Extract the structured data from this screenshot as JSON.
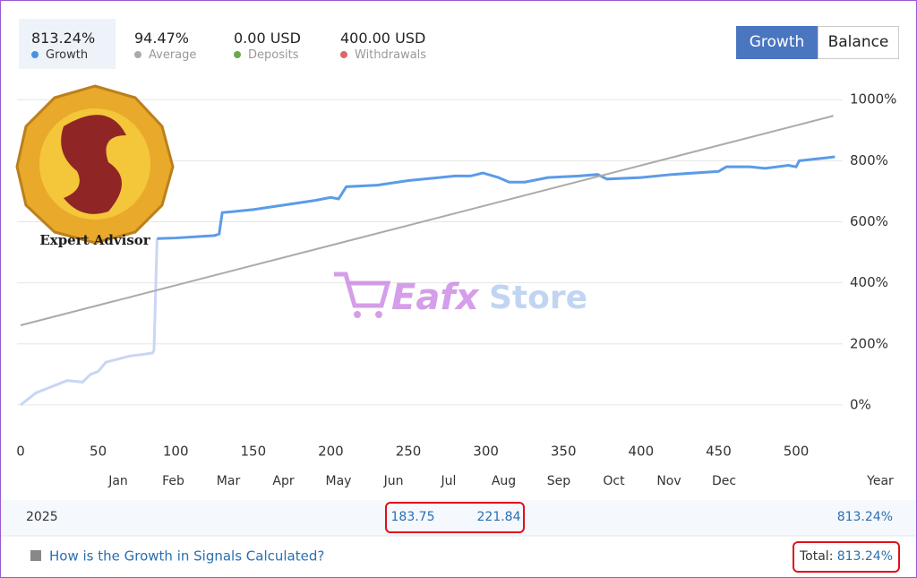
{
  "stats": [
    {
      "value": "813.24%",
      "label": "Growth",
      "color": "#4a90e2"
    },
    {
      "value": "94.47%",
      "label": "Average",
      "color": "#aaaaaa"
    },
    {
      "value": "0.00 USD",
      "label": "Deposits",
      "color": "#6aa84f"
    },
    {
      "value": "400.00 USD",
      "label": "Withdrawals",
      "color": "#e06666"
    }
  ],
  "tabs": [
    "Growth",
    "Balance"
  ],
  "watermark": {
    "badge": "Expert Advisor",
    "brand_a": "Eafx",
    "brand_b": "Store"
  },
  "chart_data": {
    "type": "line",
    "x_months": [
      "Jan",
      "Feb",
      "Mar",
      "Apr",
      "May",
      "Jun",
      "Jul",
      "Aug",
      "Sep",
      "Oct",
      "Nov",
      "Dec"
    ],
    "x_period": "Year",
    "xlim": [
      0,
      530
    ],
    "xticks": [
      0,
      50,
      100,
      150,
      200,
      250,
      300,
      350,
      400,
      450,
      500
    ],
    "ylim": [
      -100,
      1030
    ],
    "yticks": [
      {
        "value": 0,
        "label": "0%"
      },
      {
        "value": 200,
        "label": "200%"
      },
      {
        "value": 400,
        "label": "400%"
      },
      {
        "value": 600,
        "label": "600%"
      },
      {
        "value": 800,
        "label": "800%"
      },
      {
        "value": 1000,
        "label": "1000%"
      }
    ],
    "grid": true,
    "series": [
      {
        "color": "#c9d6f4",
        "x": [
          0,
          5,
          10,
          25,
          30,
          40,
          45,
          50,
          55,
          70,
          85,
          86,
          88
        ],
        "values": [
          0,
          20,
          40,
          70,
          80,
          75,
          100,
          110,
          140,
          160,
          170,
          180,
          545
        ]
      },
      {
        "color": "#5b9be8",
        "x": [
          88,
          100,
          125,
          128,
          130,
          150,
          170,
          190,
          200,
          205,
          210,
          230,
          250,
          270,
          280,
          290,
          298,
          308,
          315,
          325,
          340,
          360,
          372,
          378,
          400,
          420,
          450,
          455,
          470,
          480,
          495,
          500,
          502,
          520,
          525
        ],
        "values": [
          545,
          547,
          555,
          560,
          630,
          640,
          655,
          670,
          680,
          675,
          715,
          720,
          735,
          745,
          750,
          750,
          760,
          745,
          730,
          730,
          745,
          750,
          755,
          740,
          745,
          755,
          765,
          780,
          780,
          775,
          785,
          780,
          800,
          810,
          813
        ]
      },
      {
        "color": "#aaaaaa",
        "x": [
          0,
          524
        ],
        "values": [
          261,
          947
        ]
      }
    ]
  },
  "year_table": {
    "year": "2025",
    "jun": "183.75",
    "jul": "221.84",
    "total": "813.24%"
  },
  "footer": {
    "link": "How is the Growth in Signals Calculated?",
    "total_label": "Total:",
    "total_value": "813.24%"
  }
}
